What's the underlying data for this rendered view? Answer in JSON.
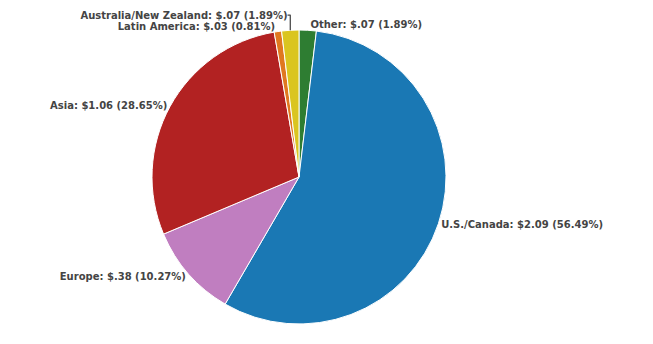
{
  "chart_data": {
    "type": "pie",
    "categories": [
      "Other: $.07 (1.89%)",
      "U.S./Canada: $2.09 (56.49%)",
      "Europe: $.38 (10.27%)",
      "Asia: $1.06 (28.65%)",
      "Latin America: $.03 (0.81%)",
      "Australia/New Zealand: $.07 (1.89%)"
    ],
    "values": [
      1.89,
      56.49,
      10.27,
      28.65,
      0.81,
      1.89
    ],
    "colors": [
      "#2E7D32",
      "#1A78B4",
      "#C07EC0",
      "#B22222",
      "#E07820",
      "#DAC520"
    ],
    "legend": false
  }
}
